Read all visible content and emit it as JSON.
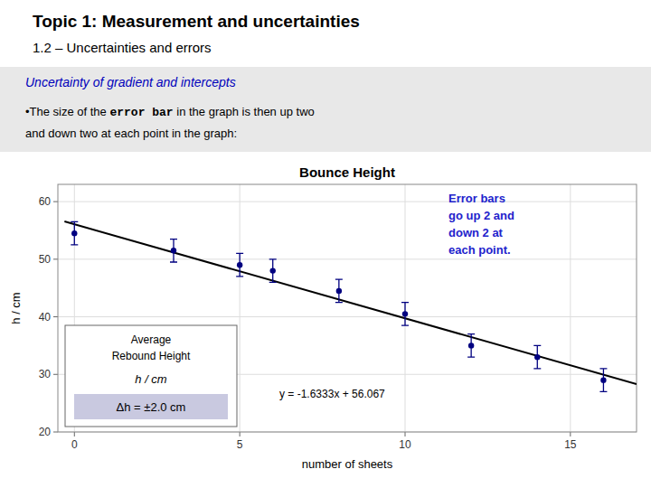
{
  "heading": [
    "Topic 1: Measurement and uncertainties",
    "1.2 – Uncertainties and errors"
  ],
  "section": {
    "title": "Uncertainty of gradient and intercepts",
    "color": "#0000bb",
    "background": "#e8e8e8",
    "notes": [
      [
        "•The size of the ",
        "error bar",
        " in the graph is then up two"
      ],
      "and down two at each point in the graph:"
    ]
  },
  "chart_data": {
    "type": "scatter",
    "title": "Bounce Height",
    "x_label": "number of sheets",
    "y_label": "h / cm",
    "xlim": [
      -0.5,
      17
    ],
    "ylim": [
      20,
      63
    ],
    "xticks": [
      0,
      5,
      10,
      15
    ],
    "yticks": [
      20,
      30,
      40,
      50,
      60
    ],
    "grid": true,
    "series": [
      {
        "type": "scatter",
        "color": "#000080",
        "x": [
          0,
          3,
          5,
          6,
          8,
          10,
          12,
          14,
          16
        ],
        "values": [
          54.5,
          51.5,
          49.0,
          48.0,
          44.5,
          40.5,
          35.0,
          33.0,
          29.0
        ],
        "error": 2.0
      },
      {
        "type": "line",
        "color": "#000000",
        "x": [
          -0.3,
          17
        ],
        "values": [
          56.55699,
          28.3009
        ]
      }
    ],
    "annotations": [
      {
        "text": "y = -1.6333x + 56.067",
        "color": "#000000"
      },
      {
        "text": "Error bars\ngo up 2 and\ndown 2 at\neach point.",
        "color": "#2222cc"
      }
    ],
    "key": {
      "label": "Average\nRebound Height",
      "unit": "h / cm",
      "uncertainty": "Δh = ±2.0 cm"
    }
  }
}
